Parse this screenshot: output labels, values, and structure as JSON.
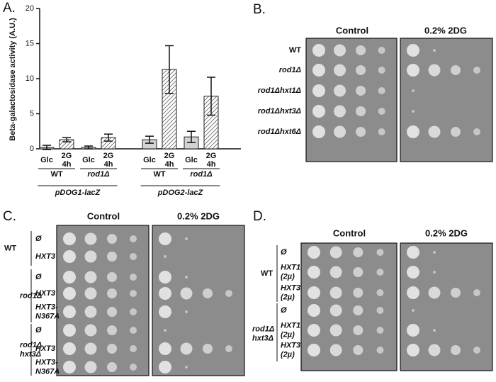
{
  "chart_data": {
    "type": "bar",
    "panel": "A.",
    "ylabel": "Beta-galactosidase activity (A.U.)",
    "categories": [
      "WT",
      "rod1Δ",
      "WT",
      "rod1Δ"
    ],
    "category_groups": [
      "pDOG1-lacZ",
      "pDOG2-lacZ"
    ],
    "series": [
      {
        "name": "Glc",
        "color": "#d3d3d3",
        "hatch": false,
        "values": [
          0.2,
          0.2,
          1.3,
          1.7
        ],
        "errors": [
          0.3,
          0.2,
          0.5,
          0.8
        ]
      },
      {
        "name": "2G 4h",
        "color": "#ffffff",
        "hatch": true,
        "values": [
          1.3,
          1.6,
          11.3,
          7.5
        ],
        "errors": [
          0.3,
          0.5,
          3.4,
          2.7
        ]
      }
    ],
    "ylim": [
      0,
      20
    ],
    "yticks": [
      0,
      5,
      10,
      15,
      20
    ]
  },
  "panel_b": {
    "letter": "B.",
    "headers": [
      "Control",
      "0.2% 2DG"
    ],
    "rows": [
      "WT",
      "rod1Δ",
      "rod1Δhxt1Δ",
      "rod1Δhxt3Δ",
      "rod1Δhxt6Δ"
    ]
  },
  "panel_c": {
    "letter": "C.",
    "headers": [
      "Control",
      "0.2% 2DG"
    ],
    "groups": [
      [
        "WT"
      ],
      [
        "rod1Δ"
      ],
      [
        "rod1Δ",
        "hxt3Δ"
      ]
    ],
    "rows": [
      [
        "Ø"
      ],
      [
        "HXT3"
      ],
      [
        "Ø"
      ],
      [
        "HXT3"
      ],
      [
        "HXT3-",
        "N367A"
      ],
      [
        "Ø"
      ],
      [
        "HXT3"
      ],
      [
        "HXT3-",
        "N367A"
      ]
    ]
  },
  "panel_d": {
    "letter": "D.",
    "headers": [
      "Control",
      "0.2% 2DG"
    ],
    "groups": [
      [
        "WT"
      ],
      [
        "rod1Δ",
        "hxt3Δ"
      ]
    ],
    "rows": [
      [
        "Ø"
      ],
      [
        "HXT1",
        "(2µ)"
      ],
      [
        "HXT3",
        "(2µ)"
      ],
      [
        "Ø"
      ],
      [
        "HXT1",
        "(2µ)"
      ],
      [
        "HXT3",
        "(2µ)"
      ]
    ]
  }
}
